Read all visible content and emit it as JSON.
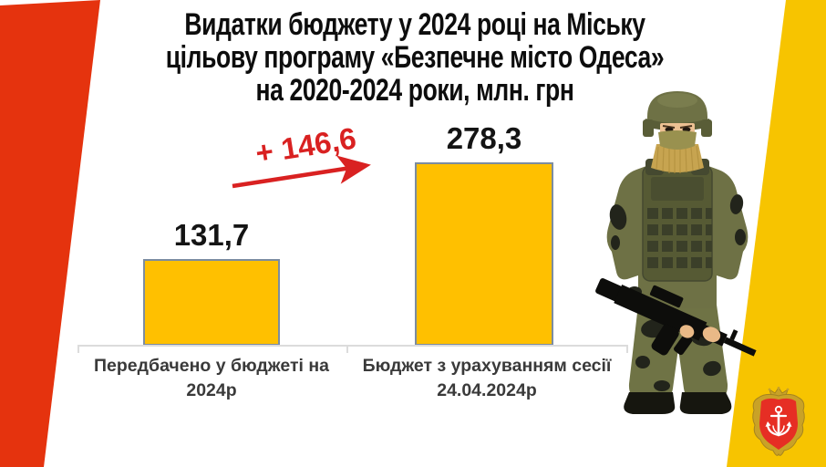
{
  "title": {
    "line1": "Видатки бюджету у 2024 році на Міську",
    "line2": "цільову програму «Безпечне місто Одеса»",
    "line3": "на 2020-2024 роки, млн. грн"
  },
  "chart_data": {
    "type": "bar",
    "title": "Видатки бюджету у 2024 році на Міську цільову програму «Безпечне місто Одеса» на 2020-2024 роки, млн. грн",
    "unit": "млн. грн",
    "categories": [
      "Передбачено у бюджеті на 2024р",
      "Бюджет з урахуванням сесії 24.04.2024р"
    ],
    "values": [
      131.7,
      278.3
    ],
    "value_labels": [
      "131,7",
      "278,3"
    ],
    "delta_value": 146.6,
    "delta_label": "+ 146,6",
    "ylim": [
      0,
      290
    ],
    "grid": false,
    "legend": false,
    "bar_color": "#FFC000",
    "bar_border_color": "#7C8CA0",
    "annotation_color": "#D92121",
    "axis_color": "#DCDCDC"
  },
  "category_labels": {
    "cat1_line1": "Передбачено у бюджеті на",
    "cat1_line2": "2024р",
    "cat2_line1": "Бюджет з урахуванням сесії",
    "cat2_line2": "24.04.2024р"
  },
  "decor": {
    "left_band_color": "#E5330E",
    "right_band_color": "#F7C400",
    "soldier": "soldier-illustration",
    "emblem": "odesa-coat-of-arms"
  }
}
